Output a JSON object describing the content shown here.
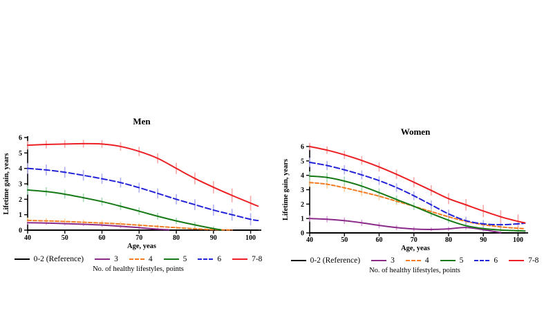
{
  "figure": {
    "background": "#ffffff",
    "legend": {
      "caption": "No. of healthy lifestyles, points",
      "items": [
        {
          "label": "0-2 (Reference)",
          "color": "#000000",
          "dash": false
        },
        {
          "label": "3",
          "color": "#8B2A8B",
          "dash": false
        },
        {
          "label": "4",
          "color": "#F47B20",
          "dash": true
        },
        {
          "label": "5",
          "color": "#157A15",
          "dash": false
        },
        {
          "label": "6",
          "color": "#2222D8",
          "dash": true
        },
        {
          "label": "7-8",
          "color": "#EC2024",
          "dash": false
        }
      ]
    }
  },
  "chart_data": [
    {
      "type": "line",
      "title": "Men",
      "xlabel": "Age, yeas",
      "ylabel": "Lifetime gain, years",
      "xlim": [
        40,
        102.5
      ],
      "ylim": [
        0,
        6
      ],
      "xticks": [
        40,
        50,
        60,
        70,
        80,
        90,
        100
      ],
      "yticks": [
        0,
        1,
        2,
        3,
        4,
        5,
        6
      ],
      "grid": false,
      "series": [
        {
          "name": "0-2 (Reference)",
          "color": "#000000",
          "light": "#9A9A9A",
          "dash": null,
          "x": [
            40,
            102
          ],
          "y": [
            0,
            0
          ],
          "err": [
            0,
            0
          ]
        },
        {
          "name": "3",
          "color": "#8B2A8B",
          "light": "#DCA9DC",
          "dash": null,
          "x": [
            40,
            45,
            50,
            55,
            60,
            65,
            70,
            75,
            78
          ],
          "y": [
            0.48,
            0.46,
            0.42,
            0.38,
            0.33,
            0.25,
            0.16,
            0.06,
            0.02
          ],
          "err": [
            0.12,
            0.12,
            0.12,
            0.12,
            0.12,
            0.12,
            0.1,
            0.08,
            0
          ]
        },
        {
          "name": "4",
          "color": "#F47B20",
          "light": "#FBD3A2",
          "dash": "5,3",
          "x": [
            40,
            45,
            50,
            55,
            60,
            65,
            70,
            75,
            80,
            85,
            90,
            95
          ],
          "y": [
            0.63,
            0.6,
            0.56,
            0.51,
            0.46,
            0.4,
            0.32,
            0.24,
            0.16,
            0.09,
            0.03,
            0.01
          ],
          "err": [
            0.18,
            0.18,
            0.18,
            0.17,
            0.16,
            0.15,
            0.14,
            0.12,
            0.1,
            0.08,
            0.06,
            0.05
          ]
        },
        {
          "name": "5",
          "color": "#157A15",
          "light": "#A9DCB9",
          "dash": null,
          "x": [
            40,
            45,
            50,
            55,
            60,
            65,
            70,
            75,
            80,
            85,
            90,
            92
          ],
          "y": [
            2.6,
            2.5,
            2.33,
            2.1,
            1.85,
            1.55,
            1.23,
            0.9,
            0.6,
            0.34,
            0.1,
            0.02
          ],
          "err": [
            0.3,
            0.28,
            0.28,
            0.27,
            0.26,
            0.25,
            0.24,
            0.22,
            0.2,
            0.18,
            0.15,
            0
          ]
        },
        {
          "name": "6",
          "color": "#2222D8",
          "light": "#B4B4F0",
          "dash": "8,4",
          "x": [
            40,
            45,
            50,
            55,
            60,
            65,
            70,
            75,
            80,
            85,
            90,
            95,
            100,
            102
          ],
          "y": [
            4.0,
            3.9,
            3.75,
            3.55,
            3.33,
            3.08,
            2.75,
            2.38,
            2.0,
            1.65,
            1.3,
            1.0,
            0.7,
            0.62
          ],
          "err": [
            0.35,
            0.35,
            0.35,
            0.34,
            0.33,
            0.32,
            0.32,
            0.32,
            0.33,
            0.35,
            0.36,
            0.38,
            0.4,
            0
          ]
        },
        {
          "name": "7-8",
          "color": "#EC2024",
          "light": "#F8ACAC",
          "dash": null,
          "x": [
            40,
            45,
            50,
            55,
            60,
            65,
            70,
            75,
            80,
            85,
            90,
            95,
            100,
            102
          ],
          "y": [
            5.5,
            5.55,
            5.58,
            5.6,
            5.58,
            5.42,
            5.1,
            4.65,
            4.0,
            3.35,
            2.78,
            2.25,
            1.75,
            1.55
          ],
          "err": [
            0.28,
            0.26,
            0.25,
            0.25,
            0.25,
            0.27,
            0.3,
            0.33,
            0.36,
            0.38,
            0.4,
            0.45,
            0.48,
            0
          ]
        }
      ]
    },
    {
      "type": "line",
      "title": "Women",
      "xlabel": "Age, yeas",
      "ylabel": "Lifetime gain, years",
      "xlim": [
        40,
        102.5
      ],
      "ylim": [
        0,
        6
      ],
      "xticks": [
        40,
        50,
        60,
        70,
        80,
        90,
        100
      ],
      "yticks": [
        0,
        1,
        2,
        3,
        4,
        5,
        6
      ],
      "grid": false,
      "series": [
        {
          "name": "0-2 (Reference)",
          "color": "#000000",
          "light": "#9A9A9A",
          "dash": null,
          "x": [
            40,
            102
          ],
          "y": [
            0,
            0
          ],
          "err": [
            0,
            0
          ]
        },
        {
          "name": "3",
          "color": "#8B2A8B",
          "light": "#DCA9DC",
          "dash": null,
          "x": [
            40,
            45,
            50,
            55,
            60,
            65,
            70,
            75,
            80,
            85,
            90,
            95
          ],
          "y": [
            1.0,
            0.95,
            0.85,
            0.7,
            0.52,
            0.37,
            0.27,
            0.24,
            0.28,
            0.38,
            0.22,
            0.02
          ],
          "err": [
            0.22,
            0.22,
            0.22,
            0.22,
            0.2,
            0.18,
            0.16,
            0.15,
            0.15,
            0.16,
            0.14,
            0.08
          ]
        },
        {
          "name": "4",
          "color": "#F47B20",
          "light": "#FBD3A2",
          "dash": "5,3",
          "x": [
            40,
            45,
            50,
            55,
            60,
            65,
            70,
            75,
            80,
            85,
            90,
            95,
            100,
            102
          ],
          "y": [
            3.5,
            3.38,
            3.13,
            2.85,
            2.55,
            2.2,
            1.85,
            1.48,
            1.12,
            0.8,
            0.57,
            0.42,
            0.32,
            0.3
          ],
          "err": [
            0.3,
            0.3,
            0.29,
            0.28,
            0.27,
            0.26,
            0.24,
            0.22,
            0.2,
            0.18,
            0.16,
            0.14,
            0.12,
            0
          ]
        },
        {
          "name": "5",
          "color": "#157A15",
          "light": "#A9DCB9",
          "dash": null,
          "x": [
            40,
            45,
            50,
            55,
            60,
            65,
            70,
            75,
            80,
            85,
            90,
            95,
            100,
            102
          ],
          "y": [
            3.95,
            3.85,
            3.6,
            3.25,
            2.8,
            2.32,
            1.85,
            1.35,
            0.88,
            0.5,
            0.3,
            0.2,
            0.15,
            0.13
          ],
          "err": [
            0.32,
            0.32,
            0.31,
            0.3,
            0.29,
            0.28,
            0.26,
            0.24,
            0.21,
            0.18,
            0.15,
            0.12,
            0.1,
            0
          ]
        },
        {
          "name": "6",
          "color": "#2222D8",
          "light": "#B4B4F0",
          "dash": "8,4",
          "x": [
            40,
            45,
            50,
            55,
            60,
            65,
            70,
            75,
            80,
            85,
            90,
            95,
            100,
            102
          ],
          "y": [
            4.9,
            4.68,
            4.38,
            4.03,
            3.63,
            3.15,
            2.58,
            1.95,
            1.32,
            0.85,
            0.63,
            0.57,
            0.63,
            0.68
          ],
          "err": [
            0.32,
            0.32,
            0.32,
            0.31,
            0.3,
            0.3,
            0.3,
            0.3,
            0.3,
            0.28,
            0.26,
            0.25,
            0.28,
            0
          ]
        },
        {
          "name": "7-8",
          "color": "#EC2024",
          "light": "#F8ACAC",
          "dash": null,
          "x": [
            40,
            45,
            50,
            55,
            60,
            65,
            70,
            75,
            80,
            85,
            90,
            95,
            100,
            102
          ],
          "y": [
            6.0,
            5.75,
            5.42,
            5.03,
            4.58,
            4.07,
            3.52,
            2.95,
            2.38,
            1.95,
            1.52,
            1.12,
            0.8,
            0.7
          ],
          "err": [
            0.25,
            0.26,
            0.28,
            0.3,
            0.32,
            0.33,
            0.35,
            0.36,
            0.38,
            0.4,
            0.42,
            0.45,
            0.48,
            0
          ]
        }
      ]
    }
  ]
}
